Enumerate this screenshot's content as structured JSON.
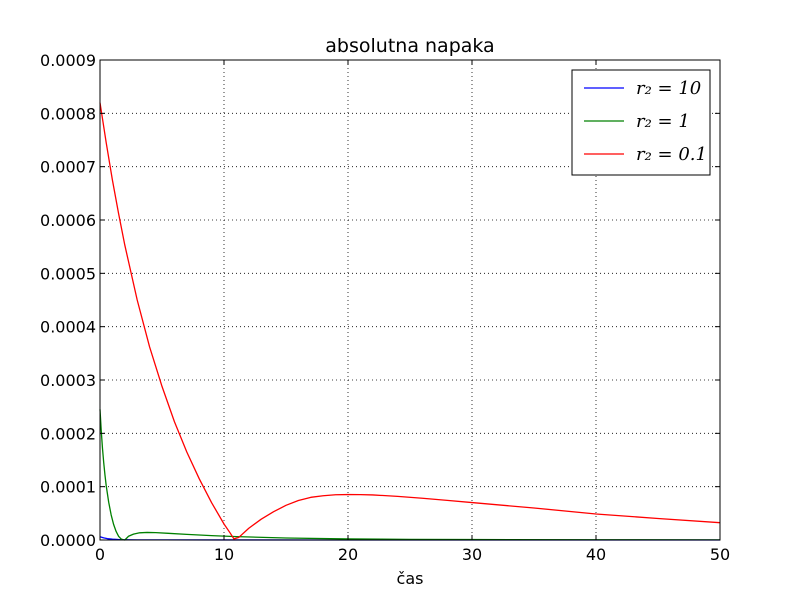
{
  "chart_data": {
    "type": "line",
    "title": "absolutna napaka",
    "xlabel": "čas",
    "ylabel": "",
    "xlim": [
      0,
      50
    ],
    "ylim": [
      0,
      0.0009
    ],
    "xticks": [
      0,
      10,
      20,
      30,
      40,
      50
    ],
    "xtick_labels": [
      "0",
      "10",
      "20",
      "30",
      "40",
      "50"
    ],
    "yticks": [
      0,
      0.0001,
      0.0002,
      0.0003,
      0.0004,
      0.0005,
      0.0006,
      0.0007,
      0.0008,
      0.0009
    ],
    "ytick_labels": [
      "0.0000",
      "0.0001",
      "0.0002",
      "0.0003",
      "0.0004",
      "0.0005",
      "0.0006",
      "0.0007",
      "0.0008",
      "0.0009"
    ],
    "grid": true,
    "legend_position": "top-right",
    "series": [
      {
        "name": "r₂ = 10",
        "color": "#0000ff",
        "x": [
          0,
          0.3,
          0.6,
          1.0,
          1.5,
          2,
          3,
          5,
          10,
          20,
          30,
          40,
          50
        ],
        "y": [
          6e-06,
          4e-06,
          2.5e-06,
          1.5e-06,
          8e-07,
          5e-07,
          3e-07,
          2e-07,
          1e-07,
          5e-08,
          3e-08,
          2e-08,
          1e-08
        ]
      },
      {
        "name": "r₂ = 1",
        "color": "#008000",
        "x": [
          0,
          0.1,
          0.2,
          0.3,
          0.4,
          0.5,
          0.7,
          0.9,
          1.1,
          1.3,
          1.5,
          1.7,
          1.9,
          2.0,
          2.3,
          2.7,
          3.2,
          3.8,
          4.5,
          5.5,
          7,
          9,
          11,
          15,
          20,
          25,
          30,
          40,
          50
        ],
        "y": [
          0.000245,
          0.000205,
          0.000172,
          0.000145,
          0.000122,
          0.000102,
          7.1e-05,
          4.7e-05,
          2.9e-05,
          1.6e-05,
          7e-06,
          2e-06,
          3e-07,
          0.0,
          7e-06,
          1.1e-05,
          1.35e-05,
          1.42e-05,
          1.38e-05,
          1.25e-05,
          1.05e-05,
          8.2e-06,
          6.3e-06,
          3.8e-06,
          2e-06,
          1.2e-06,
          8e-07,
          4e-07,
          2e-07
        ]
      },
      {
        "name": "r₂ = 0.1",
        "color": "#ff0000",
        "x": [
          0,
          0.5,
          1,
          1.5,
          2,
          3,
          4,
          5,
          6,
          7,
          8,
          9,
          10,
          10.5,
          10.8,
          11.2,
          12,
          13,
          14,
          15,
          16,
          17,
          18,
          19,
          20,
          21,
          22,
          24,
          26,
          28,
          30,
          35,
          40,
          45,
          50
        ],
        "y": [
          0.00082,
          0.000745,
          0.000675,
          0.000612,
          0.000553,
          0.00045,
          0.000362,
          0.000288,
          0.000222,
          0.000165,
          0.000115,
          7e-05,
          3e-05,
          1.3e-05,
          2e-06,
          5e-06,
          2.2e-05,
          3.9e-05,
          5.3e-05,
          6.5e-05,
          7.4e-05,
          8e-05,
          8.3e-05,
          8.48e-05,
          8.52e-05,
          8.51e-05,
          8.45e-05,
          8.18e-05,
          7.83e-05,
          7.43e-05,
          7.02e-05,
          6e-05,
          4.88e-05,
          4.03e-05,
          3.25e-05
        ]
      }
    ]
  }
}
